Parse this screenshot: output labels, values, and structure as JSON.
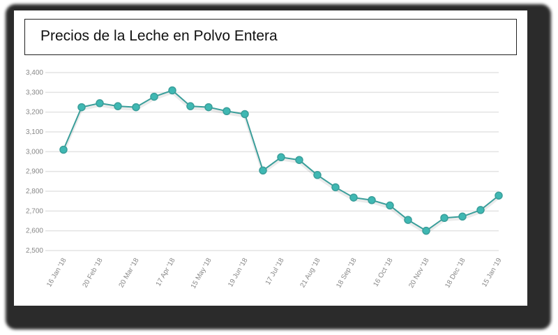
{
  "chart_data": {
    "type": "line",
    "title": "Precios de la Leche en Polvo Entera",
    "xlabel": "",
    "ylabel": "",
    "ylim": [
      2500,
      3400
    ],
    "yticks": [
      "2,500",
      "2,600",
      "2,700",
      "2,800",
      "2,900",
      "3,000",
      "3,100",
      "3,200",
      "3,300",
      "3,400"
    ],
    "xtick_labels": [
      "16 Jan '18",
      "20 Feb '18",
      "20 Mar '18",
      "17 Apr '18",
      "15 May '18",
      "19 Jun '18",
      "17 Jul '18",
      "21 Aug '18",
      "18 Sep '18",
      "16 Oct '18",
      "20 Nov '18",
      "18 Dec '18",
      "15 Jan '19"
    ],
    "values": [
      3010,
      3225,
      3245,
      3230,
      3225,
      3278,
      3310,
      3230,
      3225,
      3205,
      3190,
      2905,
      2972,
      2958,
      2882,
      2820,
      2768,
      2755,
      2728,
      2655,
      2600,
      2665,
      2672,
      2705,
      2778
    ],
    "grid": true,
    "line_color": "#3a9e9a",
    "marker_color": "#3fb8b3"
  }
}
